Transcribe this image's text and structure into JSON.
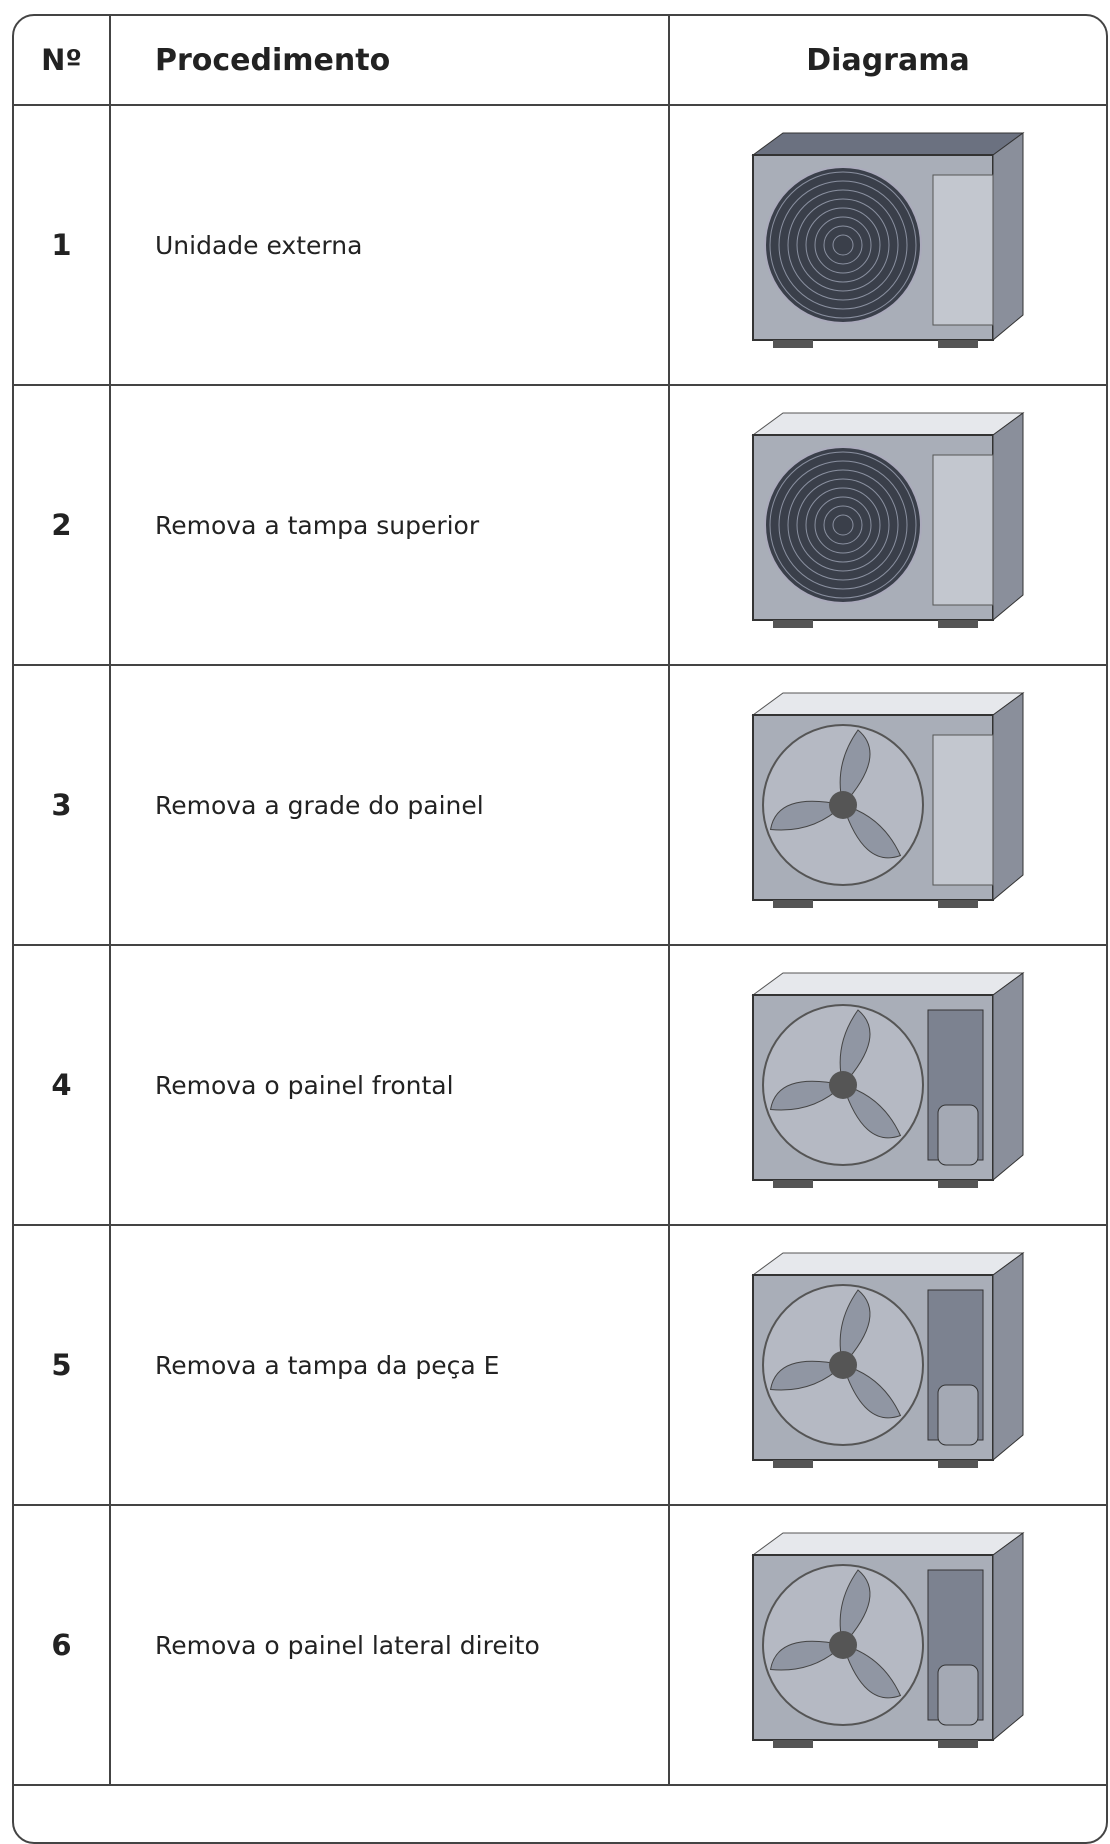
{
  "header": {
    "number": "Nº",
    "procedure": "Procedimento",
    "diagram": "Diagrama"
  },
  "table": {
    "rows": [
      [
        "1",
        "Unidade externa"
      ],
      [
        "2",
        "Remova a tampa superior"
      ],
      [
        "3",
        "Remova a grade do painel"
      ],
      [
        "4",
        "Remova o painel frontal"
      ],
      [
        "5",
        "Remova a tampa da peça E"
      ],
      [
        "6",
        "Remova o painel lateral direito"
      ]
    ]
  }
}
